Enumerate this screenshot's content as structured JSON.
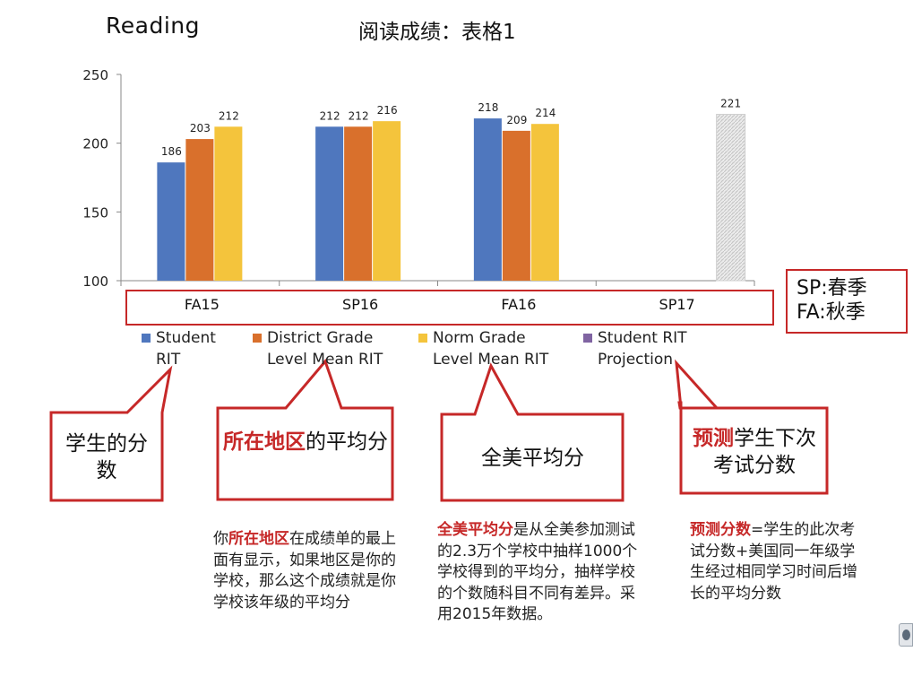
{
  "header": {
    "title_en": "Reading",
    "title_cn": "阅读成绩：表格1"
  },
  "chart_data": {
    "type": "bar",
    "categories": [
      "FA15",
      "SP16",
      "FA16",
      "SP17"
    ],
    "ylim": [
      100,
      250
    ],
    "yticks": [
      100,
      150,
      200,
      250
    ],
    "grid": false,
    "legend_position": "bottom",
    "series": [
      {
        "name": "Student RIT",
        "color": "#4f77be",
        "values": [
          186,
          212,
          218,
          null
        ]
      },
      {
        "name": "District Grade Level Mean RIT",
        "color": "#d9702c",
        "values": [
          203,
          212,
          209,
          null
        ]
      },
      {
        "name": "Norm Grade Level Mean RIT",
        "color": "#f4c43c",
        "values": [
          212,
          216,
          214,
          null
        ]
      },
      {
        "name": "Student RIT Projection",
        "color": "#8064a2",
        "values": [
          null,
          null,
          null,
          221
        ],
        "pattern": "hatched-gray"
      }
    ]
  },
  "legend": {
    "items": [
      {
        "label": "Student\nRIT",
        "color": "#4f77be"
      },
      {
        "label": "District Grade\nLevel Mean RIT",
        "color": "#d9702c"
      },
      {
        "label": "Norm Grade\nLevel Mean RIT",
        "color": "#f4c43c"
      },
      {
        "label": "Student RIT\nProjection",
        "color": "#8064a2"
      }
    ]
  },
  "season_legend": {
    "sp": "SP:春季",
    "fa": "FA:秋季"
  },
  "callouts": {
    "c1": {
      "text": "学生的分数"
    },
    "c2": {
      "highlight": "所在地区",
      "rest": "的平均分"
    },
    "c3": {
      "text": "全美平均分"
    },
    "c4": {
      "highlight": "预测",
      "rest": "学生下次考试分数"
    }
  },
  "notes": {
    "n1": {
      "pre": "你",
      "highlight": "所在地区",
      "rest": "在成绩单的最上面有显示，如果地区是你的学校，那么这个成绩就是你学校该年级的平均分"
    },
    "n2": {
      "highlight": "全美平均分",
      "rest": "是从全美参加测试的2.3万个学校中抽样1000个学校得到的平均分，抽样学校的个数随科目不同有差异。采用2015年数据。"
    },
    "n3": {
      "highlight": "预测分数",
      "rest": "=学生的此次考试分数+美国同一年级学生经过相同学习时间后增长的平均分数"
    }
  },
  "colors": {
    "accent_red": "#c62828"
  }
}
